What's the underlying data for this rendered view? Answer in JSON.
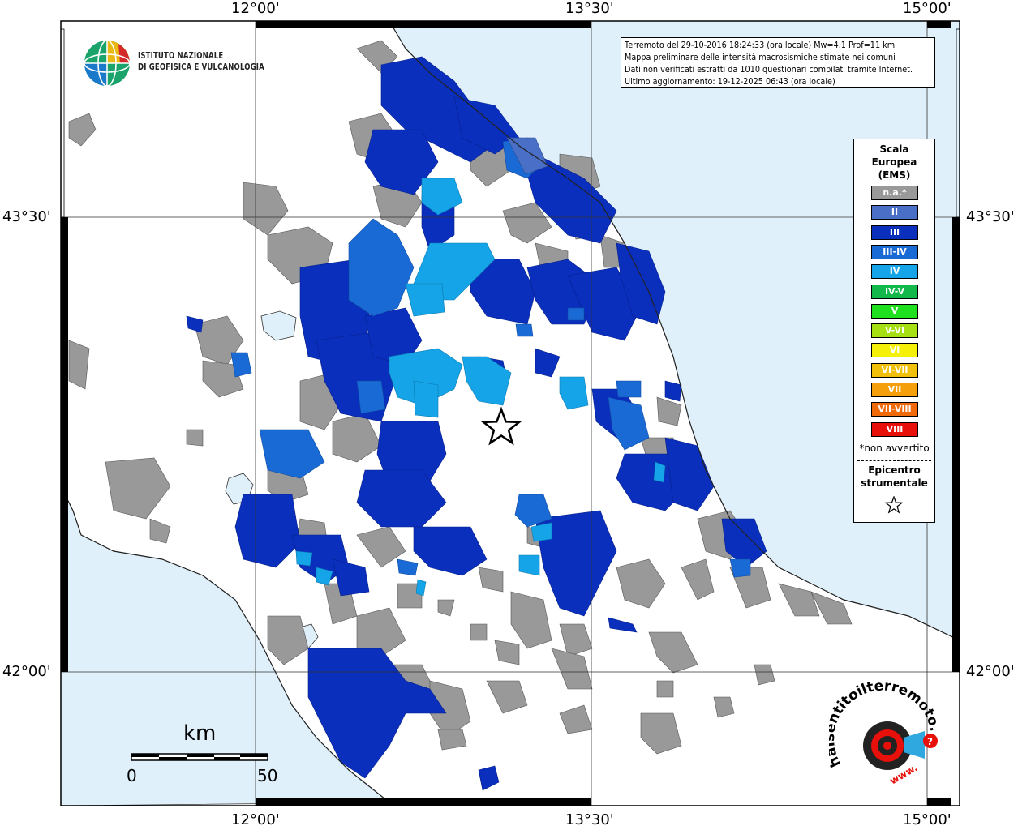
{
  "map": {
    "graticule": {
      "top_lon_labels": [
        "12°00'",
        "13°30'",
        "15°00'"
      ],
      "bottom_lon_labels": [
        "12°00'",
        "13°30'",
        "15°00'"
      ],
      "left_lat_labels": [
        "43°30'",
        "42°00'"
      ],
      "right_lat_labels": [
        "43°30'",
        "42°00'"
      ]
    },
    "colors": {
      "sea": "#dff0fb",
      "land": "#ffffff",
      "na": "#999999",
      "II": "#4a6fc6",
      "III": "#0a2fbd",
      "III-IV": "#1a6ad6",
      "IV": "#15a4e8"
    }
  },
  "logo": {
    "line1": "ISTITUTO NAZIONALE",
    "line2": "DI GEOFISICA E VULCANOLOGIA"
  },
  "info": {
    "line1": "Terremoto del 29-10-2016 18:24:33 (ora locale) Mw=4.1 Prof=11 km",
    "line2": "Mappa preliminare delle intensità macrosismiche stimate nei comuni",
    "line3": "Dati non verificati estratti da 1010 questionari compilati tramite Internet.",
    "line4": "Ultimo aggiornamento: 19-12-2025 06:43 (ora locale)"
  },
  "legend": {
    "title_line1": "Scala",
    "title_line2": "Europea",
    "title_line3": "(EMS)",
    "items": [
      {
        "label": "n.a.*",
        "color": "#999999"
      },
      {
        "label": "II",
        "color": "#4a6fc6"
      },
      {
        "label": "III",
        "color": "#0a2fbd"
      },
      {
        "label": "III-IV",
        "color": "#1a6ad6"
      },
      {
        "label": "IV",
        "color": "#15a4e8"
      },
      {
        "label": "IV-V",
        "color": "#12b84a"
      },
      {
        "label": "V",
        "color": "#1fe01f"
      },
      {
        "label": "V-VI",
        "color": "#a6e012"
      },
      {
        "label": "VI",
        "color": "#f5f00a"
      },
      {
        "label": "VI-VII",
        "color": "#f0c00a"
      },
      {
        "label": "VII",
        "color": "#f5a00a"
      },
      {
        "label": "VII-VIII",
        "color": "#f06a0a"
      },
      {
        "label": "VIII",
        "color": "#e8100a"
      }
    ],
    "note": "*non avvertito",
    "epicenter_line1": "Epicentro",
    "epicenter_line2": "strumentale",
    "epicenter_icon": "star-outline-icon"
  },
  "scalebar": {
    "unit": "km",
    "start": "0",
    "end": "50"
  },
  "hsit_logo": {
    "text": "haisentitoilterremoto.it",
    "prefix": "www.",
    "badge": "?"
  }
}
